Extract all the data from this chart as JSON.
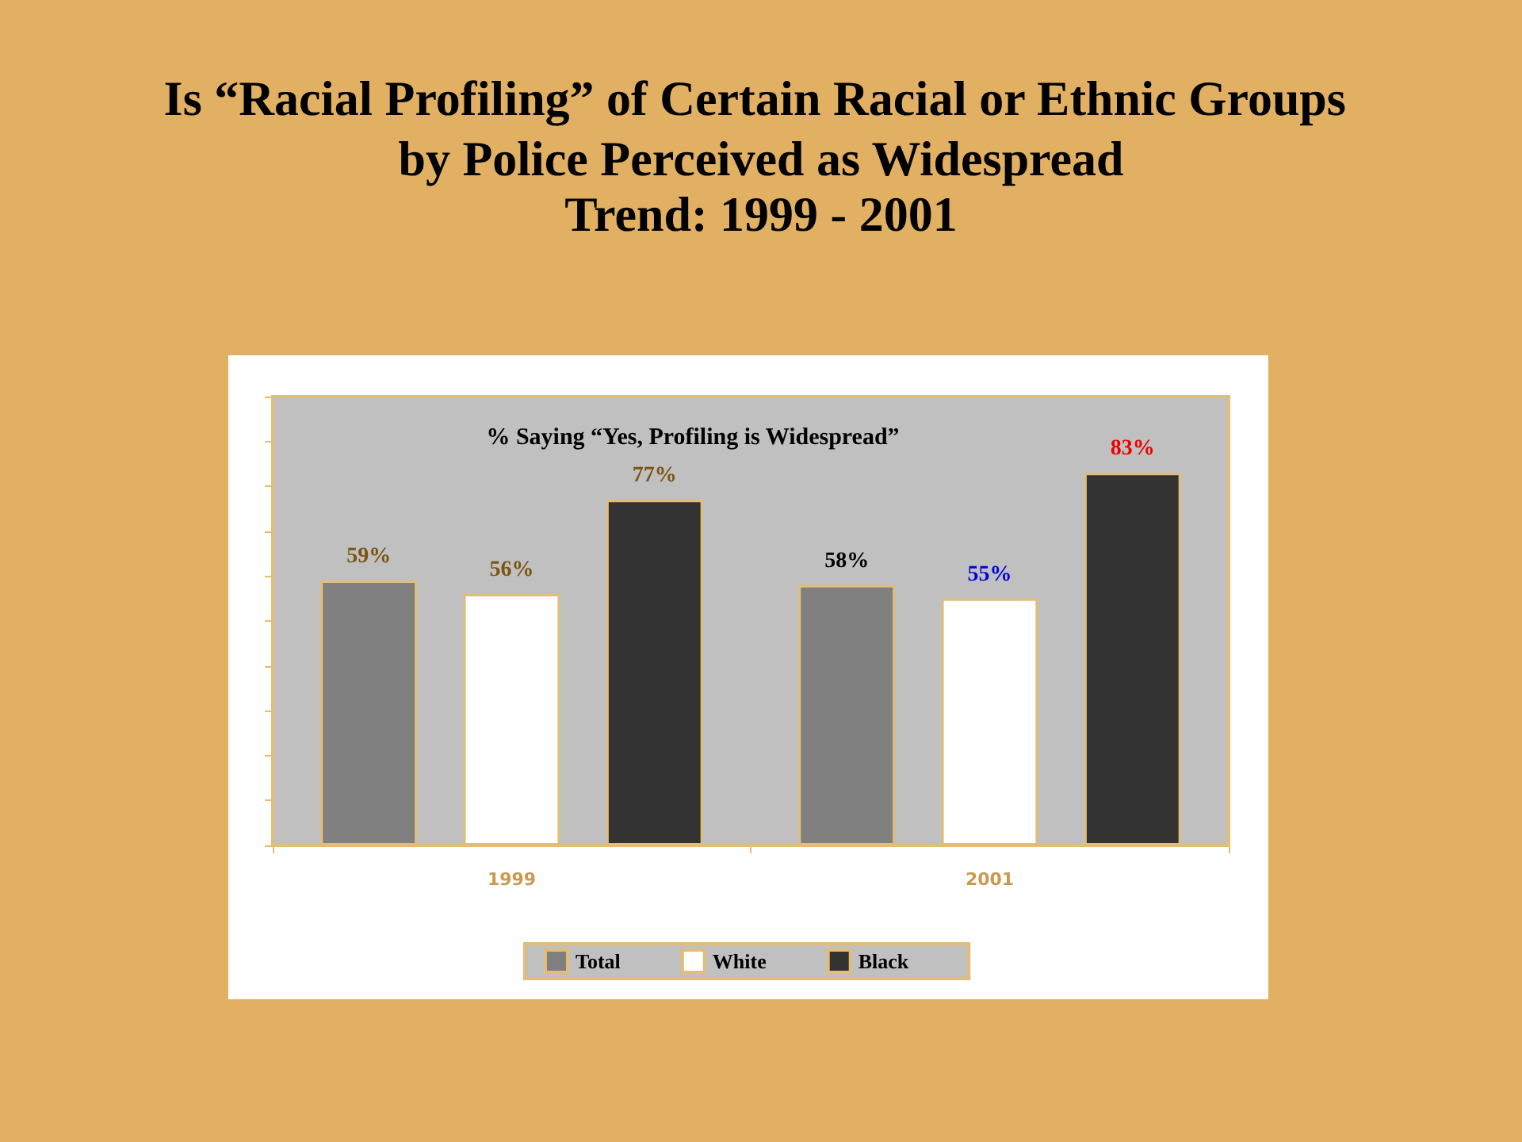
{
  "chart_data": {
    "type": "bar",
    "title": "Is “Racial Profiling” of Certain Racial or Ethnic Groups by Police Perceived as Widespread",
    "subtitle": "Trend: 1999 - 2001",
    "annotations": [
      "% Saying “Yes, Profiling is Widespread”"
    ],
    "categories": [
      "1999",
      "2001"
    ],
    "series": [
      {
        "name": "Total",
        "color": "#808080",
        "values": [
          59,
          58
        ],
        "value_labels": [
          "59%",
          "58%"
        ]
      },
      {
        "name": "White",
        "color": "#ffffff",
        "values": [
          56,
          55
        ],
        "value_labels": [
          "56%",
          "55%"
        ]
      },
      {
        "name": "Black",
        "color": "#333333",
        "values": [
          77,
          83
        ],
        "value_labels": [
          "77%",
          "83%"
        ]
      }
    ],
    "ylim": [
      0,
      100
    ],
    "yticks": [
      {
        "value": 0,
        "label": null
      },
      {
        "value": 10,
        "label": null
      },
      {
        "value": 20,
        "label": null
      },
      {
        "value": 30,
        "label": null
      },
      {
        "value": 40,
        "label": null
      },
      {
        "value": 50,
        "label": null
      },
      {
        "value": 60,
        "label": null
      },
      {
        "value": 70,
        "label": null
      },
      {
        "value": 80,
        "label": null
      },
      {
        "value": 90,
        "label": null
      },
      {
        "value": 100,
        "label": null
      }
    ],
    "tick_labels": "x",
    "legend": "bottom"
  }
}
